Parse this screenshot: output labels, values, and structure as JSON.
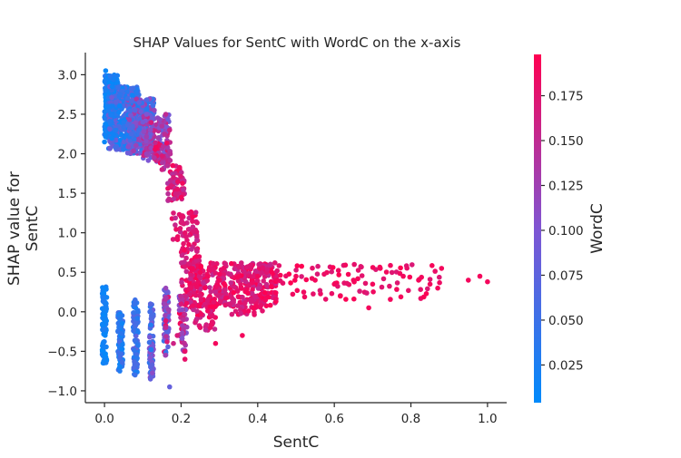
{
  "chart_data": {
    "type": "scatter",
    "title": "SHAP Values for SentC with WordC on the x-axis",
    "xlabel": "SentC",
    "ylabel_lines": [
      "SHAP value for",
      "SentC"
    ],
    "colorbar_label": "WordC",
    "xlim": [
      -0.05,
      1.05
    ],
    "ylim": [
      -1.15,
      3.28
    ],
    "xticks": [
      0.0,
      0.2,
      0.4,
      0.6,
      0.8,
      1.0
    ],
    "xtick_labels": [
      "0.0",
      "0.2",
      "0.4",
      "0.6",
      "0.8",
      "1.0"
    ],
    "yticks": [
      -1.0,
      -0.5,
      0.0,
      0.5,
      1.0,
      1.5,
      2.0,
      2.5,
      3.0
    ],
    "ytick_labels": [
      "−1.0",
      "−0.5",
      "0.0",
      "0.5",
      "1.0",
      "1.5",
      "2.0",
      "2.5",
      "3.0"
    ],
    "color_range": [
      0.004,
      0.198
    ],
    "cticks": [
      0.025,
      0.05,
      0.075,
      0.1,
      0.125,
      0.15,
      0.175
    ],
    "ctick_labels": [
      "0.025",
      "0.050",
      "0.075",
      "0.100",
      "0.125",
      "0.150",
      "0.175"
    ],
    "colormap": [
      "#008AFB",
      "#7F55D3",
      "#FF0051"
    ],
    "grid": false,
    "points": [
      [
        0.0,
        2.15,
        0.01
      ],
      [
        0.01,
        2.6,
        0.02
      ],
      [
        0.02,
        2.85,
        0.015
      ],
      [
        0.03,
        2.3,
        0.03
      ],
      [
        0.04,
        2.75,
        0.04
      ],
      [
        0.05,
        2.4,
        0.03
      ],
      [
        0.06,
        2.7,
        0.05
      ],
      [
        0.07,
        2.25,
        0.06
      ],
      [
        0.08,
        2.55,
        0.07
      ],
      [
        0.09,
        2.65,
        0.08
      ],
      [
        0.1,
        2.4,
        0.09
      ],
      [
        0.11,
        2.5,
        0.1
      ],
      [
        0.12,
        2.3,
        0.11
      ],
      [
        0.13,
        2.55,
        0.12
      ],
      [
        0.14,
        2.2,
        0.13
      ],
      [
        0.15,
        2.35,
        0.14
      ],
      [
        0.16,
        2.5,
        0.15
      ],
      [
        0.17,
        2.3,
        0.16
      ],
      [
        0.003,
        3.05,
        0.01
      ],
      [
        0.025,
        2.95,
        0.02
      ],
      [
        0.11,
        2.0,
        0.12
      ],
      [
        0.13,
        1.95,
        0.14
      ],
      [
        0.15,
        1.8,
        0.16
      ],
      [
        0.18,
        1.7,
        0.17
      ],
      [
        0.19,
        1.55,
        0.18
      ],
      [
        0.2,
        1.45,
        0.19
      ],
      [
        0.18,
        1.25,
        0.17
      ],
      [
        0.2,
        1.2,
        0.18
      ],
      [
        0.21,
        1.0,
        0.18
      ],
      [
        0.22,
        0.85,
        0.19
      ],
      [
        0.23,
        1.2,
        0.19
      ],
      [
        0.24,
        0.7,
        0.19
      ],
      [
        0.23,
        0.55,
        0.19
      ],
      [
        0.25,
        0.5,
        0.19
      ],
      [
        0.27,
        0.45,
        0.19
      ],
      [
        0.3,
        0.4,
        0.19
      ],
      [
        0.35,
        0.45,
        0.19
      ],
      [
        0.4,
        0.45,
        0.19
      ],
      [
        0.45,
        0.4,
        0.19
      ],
      [
        0.5,
        0.45,
        0.19
      ],
      [
        0.55,
        0.4,
        0.19
      ],
      [
        0.6,
        0.35,
        0.19
      ],
      [
        0.65,
        0.4,
        0.19
      ],
      [
        0.7,
        0.35,
        0.19
      ],
      [
        0.72,
        0.55,
        0.19
      ],
      [
        0.78,
        0.45,
        0.19
      ],
      [
        0.82,
        0.4,
        0.19
      ],
      [
        0.85,
        0.35,
        0.19
      ],
      [
        0.88,
        0.55,
        0.19
      ],
      [
        0.95,
        0.4,
        0.19
      ],
      [
        0.98,
        0.45,
        0.19
      ],
      [
        1.0,
        0.38,
        0.19
      ],
      [
        0.87,
        0.3,
        0.19
      ],
      [
        0.69,
        0.05,
        0.19
      ],
      [
        0.42,
        0.15,
        0.19
      ],
      [
        0.36,
        -0.3,
        0.19
      ],
      [
        0.29,
        -0.4,
        0.19
      ],
      [
        0.25,
        -0.2,
        0.18
      ],
      [
        0.21,
        -0.5,
        0.18
      ],
      [
        0.19,
        -0.3,
        0.17
      ],
      [
        0.0,
        0.3,
        0.01
      ],
      [
        0.0,
        -0.6,
        0.015
      ],
      [
        0.04,
        -0.1,
        0.03
      ],
      [
        0.04,
        -0.75,
        0.03
      ],
      [
        0.08,
        0.15,
        0.05
      ],
      [
        0.08,
        -0.8,
        0.05
      ],
      [
        0.12,
        0.1,
        0.07
      ],
      [
        0.12,
        -0.85,
        0.08
      ],
      [
        0.16,
        0.3,
        0.12
      ],
      [
        0.16,
        -0.2,
        0.15
      ],
      [
        0.17,
        -0.95,
        0.08
      ],
      [
        0.2,
        0.1,
        0.17
      ],
      [
        0.18,
        -0.4,
        0.16
      ],
      [
        0.21,
        -0.6,
        0.18
      ]
    ],
    "clusters": [
      {
        "x": [
          0.0,
          0.035
        ],
        "y": [
          2.2,
          3.0
        ],
        "c": [
          0.004,
          0.04
        ],
        "n": 280
      },
      {
        "x": [
          0.01,
          0.09
        ],
        "y": [
          2.05,
          2.85
        ],
        "c": [
          0.01,
          0.09
        ],
        "n": 420
      },
      {
        "x": [
          0.06,
          0.13
        ],
        "y": [
          2.0,
          2.7
        ],
        "c": [
          0.02,
          0.14
        ],
        "n": 300
      },
      {
        "x": [
          0.1,
          0.17
        ],
        "y": [
          1.9,
          2.5
        ],
        "c": [
          0.08,
          0.17
        ],
        "n": 150
      },
      {
        "x": [
          0.13,
          0.175
        ],
        "y": [
          1.75,
          2.15
        ],
        "c": [
          0.13,
          0.19
        ],
        "n": 40
      },
      {
        "x": [
          0.165,
          0.21
        ],
        "y": [
          1.4,
          1.85
        ],
        "c": [
          0.14,
          0.195
        ],
        "n": 60
      },
      {
        "x": [
          0.175,
          0.245
        ],
        "y": [
          0.8,
          1.3
        ],
        "c": [
          0.15,
          0.195
        ],
        "n": 50
      },
      {
        "x": [
          0.2,
          0.25
        ],
        "y": [
          0.1,
          0.8
        ],
        "c": [
          0.15,
          0.198
        ],
        "n": 70
      },
      {
        "x": [
          0.22,
          0.45
        ],
        "y": [
          0.05,
          0.62
        ],
        "c": [
          0.15,
          0.198
        ],
        "n": 360
      },
      {
        "x": [
          0.35,
          0.88
        ],
        "y": [
          0.15,
          0.6
        ],
        "c": [
          0.17,
          0.198
        ],
        "n": 110
      },
      {
        "x": [
          -0.006,
          0.006
        ],
        "y": [
          -0.65,
          0.32
        ],
        "c": [
          0.004,
          0.03
        ],
        "n": 90
      },
      {
        "x": [
          0.035,
          0.048
        ],
        "y": [
          -0.75,
          0.0
        ],
        "c": [
          0.01,
          0.06
        ],
        "n": 90
      },
      {
        "x": [
          0.075,
          0.088
        ],
        "y": [
          -0.8,
          0.12
        ],
        "c": [
          0.02,
          0.08
        ],
        "n": 90
      },
      {
        "x": [
          0.117,
          0.128
        ],
        "y": [
          -0.85,
          0.1
        ],
        "c": [
          0.03,
          0.12
        ],
        "n": 80
      },
      {
        "x": [
          0.155,
          0.168
        ],
        "y": [
          -0.55,
          0.3
        ],
        "c": [
          0.04,
          0.18
        ],
        "n": 70
      },
      {
        "x": [
          0.195,
          0.215
        ],
        "y": [
          -0.5,
          0.2
        ],
        "c": [
          0.1,
          0.195
        ],
        "n": 50
      },
      {
        "x": [
          0.23,
          0.29
        ],
        "y": [
          -0.25,
          0.1
        ],
        "c": [
          0.14,
          0.198
        ],
        "n": 40
      },
      {
        "x": [
          0.33,
          0.42
        ],
        "y": [
          -0.05,
          0.2
        ],
        "c": [
          0.16,
          0.198
        ],
        "n": 25
      }
    ]
  }
}
